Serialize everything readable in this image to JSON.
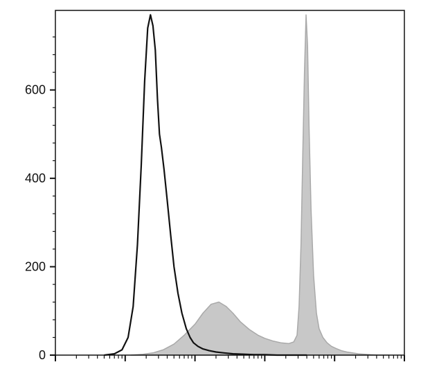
{
  "chart_data": {
    "type": "area",
    "title": "",
    "xlabel": "",
    "ylabel": "",
    "x_scale": "log",
    "xlim": [
      1,
      100000
    ],
    "ylim": [
      0,
      780
    ],
    "yticks": [
      0,
      200,
      400,
      600
    ],
    "ytick_labels": [
      "0",
      "200",
      "400",
      "600"
    ],
    "grid": false,
    "legend": "none",
    "series": [
      {
        "style": "filled",
        "fill_color": "#c8c8c8",
        "stroke_color": "#a9a9a9",
        "x": [
          12,
          18,
          25,
          35,
          50,
          70,
          100,
          130,
          170,
          220,
          280,
          350,
          450,
          600,
          800,
          1000,
          1300,
          1700,
          2200,
          2600,
          2900,
          3100,
          3300,
          3500,
          3700,
          3900,
          4100,
          4300,
          4600,
          5000,
          5500,
          6000,
          6800,
          7800,
          9000,
          10500,
          12500,
          15000,
          18000,
          22000,
          27000,
          33000,
          42000,
          60000
        ],
        "y": [
          0,
          2,
          5,
          12,
          25,
          45,
          70,
          95,
          115,
          120,
          110,
          95,
          75,
          58,
          45,
          38,
          32,
          28,
          26,
          30,
          45,
          110,
          250,
          450,
          640,
          770,
          700,
          520,
          330,
          180,
          95,
          60,
          40,
          28,
          20,
          15,
          10,
          7,
          5,
          3,
          2,
          1,
          0,
          0
        ]
      },
      {
        "style": "line",
        "stroke_color": "#111111",
        "x": [
          5,
          7,
          9,
          11,
          13,
          15,
          17,
          19,
          21,
          23,
          25,
          27,
          29,
          31,
          33,
          36,
          40,
          45,
          50,
          57,
          65,
          75,
          85,
          95,
          110,
          130,
          160,
          200,
          260,
          350,
          500,
          700,
          1000,
          1500,
          2500,
          4000
        ],
        "y": [
          0,
          3,
          12,
          40,
          110,
          250,
          430,
          620,
          740,
          770,
          745,
          690,
          580,
          500,
          470,
          420,
          350,
          270,
          200,
          140,
          95,
          60,
          40,
          28,
          20,
          14,
          10,
          7,
          5,
          3,
          2,
          1,
          1,
          0,
          0,
          0
        ]
      }
    ]
  }
}
